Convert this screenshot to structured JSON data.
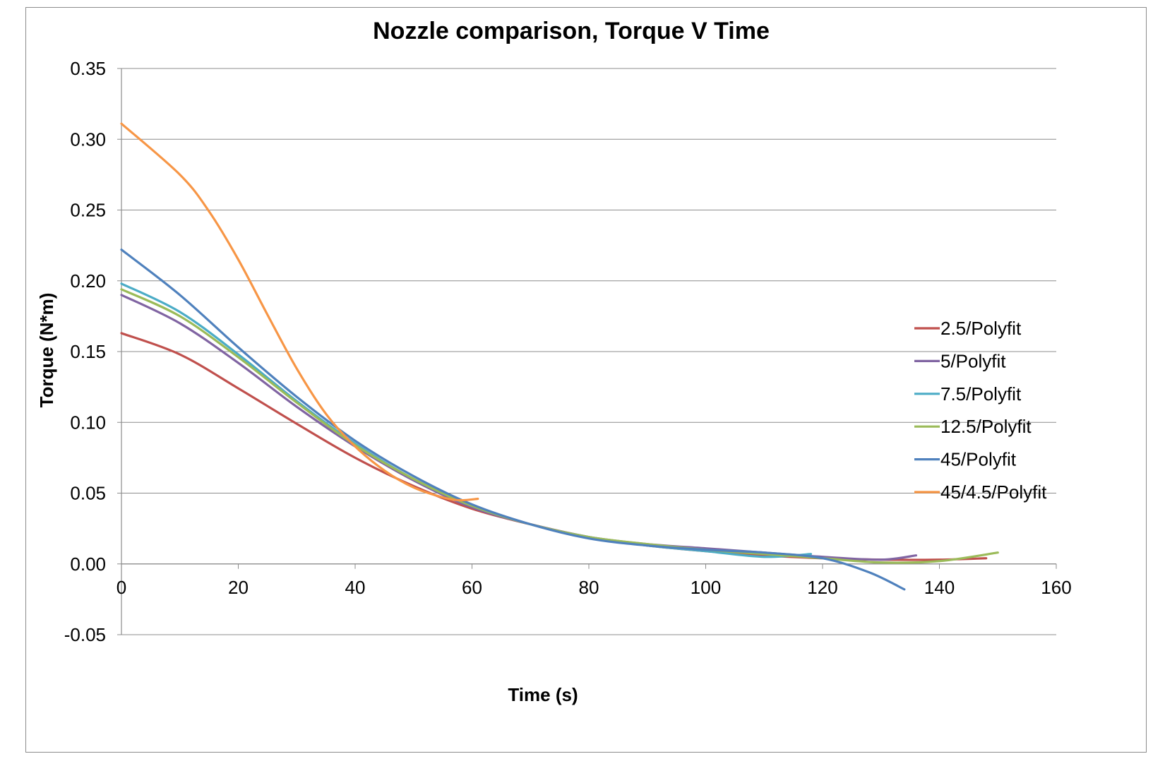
{
  "chart_data": {
    "type": "line",
    "title": "Nozzle comparison, Torque V Time",
    "xlabel": "Time (s)",
    "ylabel": "Torque (N*m)",
    "xlim": [
      0,
      160
    ],
    "ylim": [
      -0.05,
      0.35
    ],
    "x_ticks": [
      "0",
      "20",
      "40",
      "60",
      "80",
      "100",
      "120",
      "140",
      "160"
    ],
    "y_ticks": [
      "-0.05",
      "0.00",
      "0.05",
      "0.10",
      "0.15",
      "0.20",
      "0.25",
      "0.30",
      "0.35"
    ],
    "grid": "horizontal major",
    "legend_position": "right",
    "series": [
      {
        "name": "2.5/Polyfit",
        "color": "#c0504d",
        "points": [
          [
            0,
            0.163
          ],
          [
            10,
            0.148
          ],
          [
            20,
            0.124
          ],
          [
            30,
            0.099
          ],
          [
            40,
            0.075
          ],
          [
            50,
            0.055
          ],
          [
            60,
            0.039
          ],
          [
            70,
            0.028
          ],
          [
            80,
            0.019
          ],
          [
            90,
            0.013
          ],
          [
            100,
            0.009
          ],
          [
            110,
            0.006
          ],
          [
            120,
            0.004
          ],
          [
            130,
            0.003
          ],
          [
            140,
            0.003
          ],
          [
            148,
            0.004
          ]
        ]
      },
      {
        "name": "5/Polyfit",
        "color": "#8064a2",
        "points": [
          [
            0,
            0.19
          ],
          [
            10,
            0.17
          ],
          [
            20,
            0.142
          ],
          [
            30,
            0.111
          ],
          [
            40,
            0.083
          ],
          [
            50,
            0.059
          ],
          [
            60,
            0.04
          ],
          [
            70,
            0.028
          ],
          [
            80,
            0.019
          ],
          [
            90,
            0.014
          ],
          [
            100,
            0.011
          ],
          [
            110,
            0.008
          ],
          [
            120,
            0.005
          ],
          [
            130,
            0.003
          ],
          [
            136,
            0.006
          ]
        ]
      },
      {
        "name": "7.5/Polyfit",
        "color": "#4bacc6",
        "points": [
          [
            0,
            0.198
          ],
          [
            10,
            0.178
          ],
          [
            20,
            0.148
          ],
          [
            30,
            0.115
          ],
          [
            40,
            0.085
          ],
          [
            50,
            0.06
          ],
          [
            60,
            0.041
          ],
          [
            70,
            0.028
          ],
          [
            80,
            0.019
          ],
          [
            90,
            0.013
          ],
          [
            100,
            0.009
          ],
          [
            110,
            0.005
          ],
          [
            118,
            0.007
          ]
        ]
      },
      {
        "name": "12.5/Polyfit",
        "color": "#9bbb59",
        "points": [
          [
            0,
            0.194
          ],
          [
            10,
            0.175
          ],
          [
            20,
            0.146
          ],
          [
            30,
            0.114
          ],
          [
            40,
            0.084
          ],
          [
            50,
            0.06
          ],
          [
            60,
            0.041
          ],
          [
            70,
            0.028
          ],
          [
            80,
            0.019
          ],
          [
            90,
            0.014
          ],
          [
            100,
            0.01
          ],
          [
            110,
            0.007
          ],
          [
            120,
            0.004
          ],
          [
            130,
            0.001
          ],
          [
            140,
            0.002
          ],
          [
            150,
            0.008
          ]
        ]
      },
      {
        "name": "45/Polyfit",
        "color": "#4f81bd",
        "points": [
          [
            0,
            0.222
          ],
          [
            10,
            0.19
          ],
          [
            20,
            0.153
          ],
          [
            30,
            0.118
          ],
          [
            40,
            0.087
          ],
          [
            50,
            0.062
          ],
          [
            60,
            0.042
          ],
          [
            70,
            0.028
          ],
          [
            80,
            0.018
          ],
          [
            90,
            0.013
          ],
          [
            100,
            0.01
          ],
          [
            110,
            0.008
          ],
          [
            120,
            0.004
          ],
          [
            128,
            -0.006
          ],
          [
            134,
            -0.018
          ]
        ]
      },
      {
        "name": "45/4.5/Polyfit",
        "color": "#f79646",
        "points": [
          [
            0,
            0.311
          ],
          [
            10,
            0.275
          ],
          [
            15,
            0.249
          ],
          [
            20,
            0.215
          ],
          [
            25,
            0.176
          ],
          [
            30,
            0.138
          ],
          [
            35,
            0.106
          ],
          [
            40,
            0.083
          ],
          [
            45,
            0.066
          ],
          [
            50,
            0.054
          ],
          [
            55,
            0.047
          ],
          [
            58,
            0.045
          ],
          [
            61,
            0.046
          ]
        ]
      }
    ]
  }
}
